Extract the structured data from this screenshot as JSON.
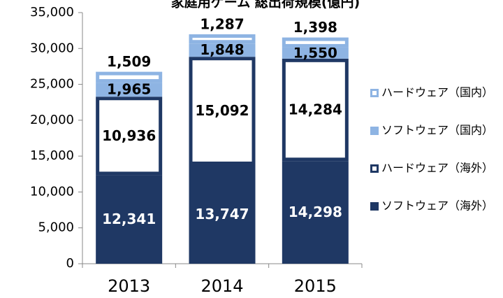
{
  "chart_data": {
    "type": "stacked_bar",
    "title": "家庭用ゲーム 総出荷規模(億円)",
    "categories": [
      "2013",
      "2014",
      "2015"
    ],
    "series": [
      {
        "name": "ソフトウェア（海外）",
        "color": "#1f3864",
        "fill": "#1f3864",
        "values": [
          12341,
          13747,
          14298
        ],
        "value_labels": [
          "12,341",
          "13,747",
          "14,298"
        ]
      },
      {
        "name": "ハードウェア（海外）",
        "color": "#1f3864",
        "fill": "#ffffff",
        "values": [
          10936,
          15092,
          14284
        ],
        "value_labels": [
          "10,936",
          "15,092",
          "14,284"
        ]
      },
      {
        "name": "ソフトウェア（国内）",
        "color": "#8eb4e3",
        "fill": "#8eb4e3",
        "values": [
          1965,
          1848,
          1550
        ],
        "value_labels": [
          "1,965",
          "1,848",
          "1,550"
        ]
      },
      {
        "name": "ハードウェア（国内）",
        "color": "#8eb4e3",
        "fill": "#ffffff",
        "values": [
          1509,
          1287,
          1398
        ],
        "value_labels": [
          "1,509",
          "1,287",
          "1,398"
        ]
      }
    ],
    "ylim": [
      0,
      35000
    ],
    "yticks": [
      0,
      {
        "value": 5000,
        "label": "5,000"
      },
      {
        "value": 10000,
        "label": "10,000"
      },
      {
        "value": 15000,
        "label": "15,000"
      },
      {
        "value": 20000,
        "label": "20,000"
      },
      {
        "value": 25000,
        "label": "25,000"
      },
      {
        "value": 30000,
        "label": "30,000"
      },
      {
        "value": 35000,
        "label": "35,000"
      }
    ],
    "legend": "right"
  }
}
